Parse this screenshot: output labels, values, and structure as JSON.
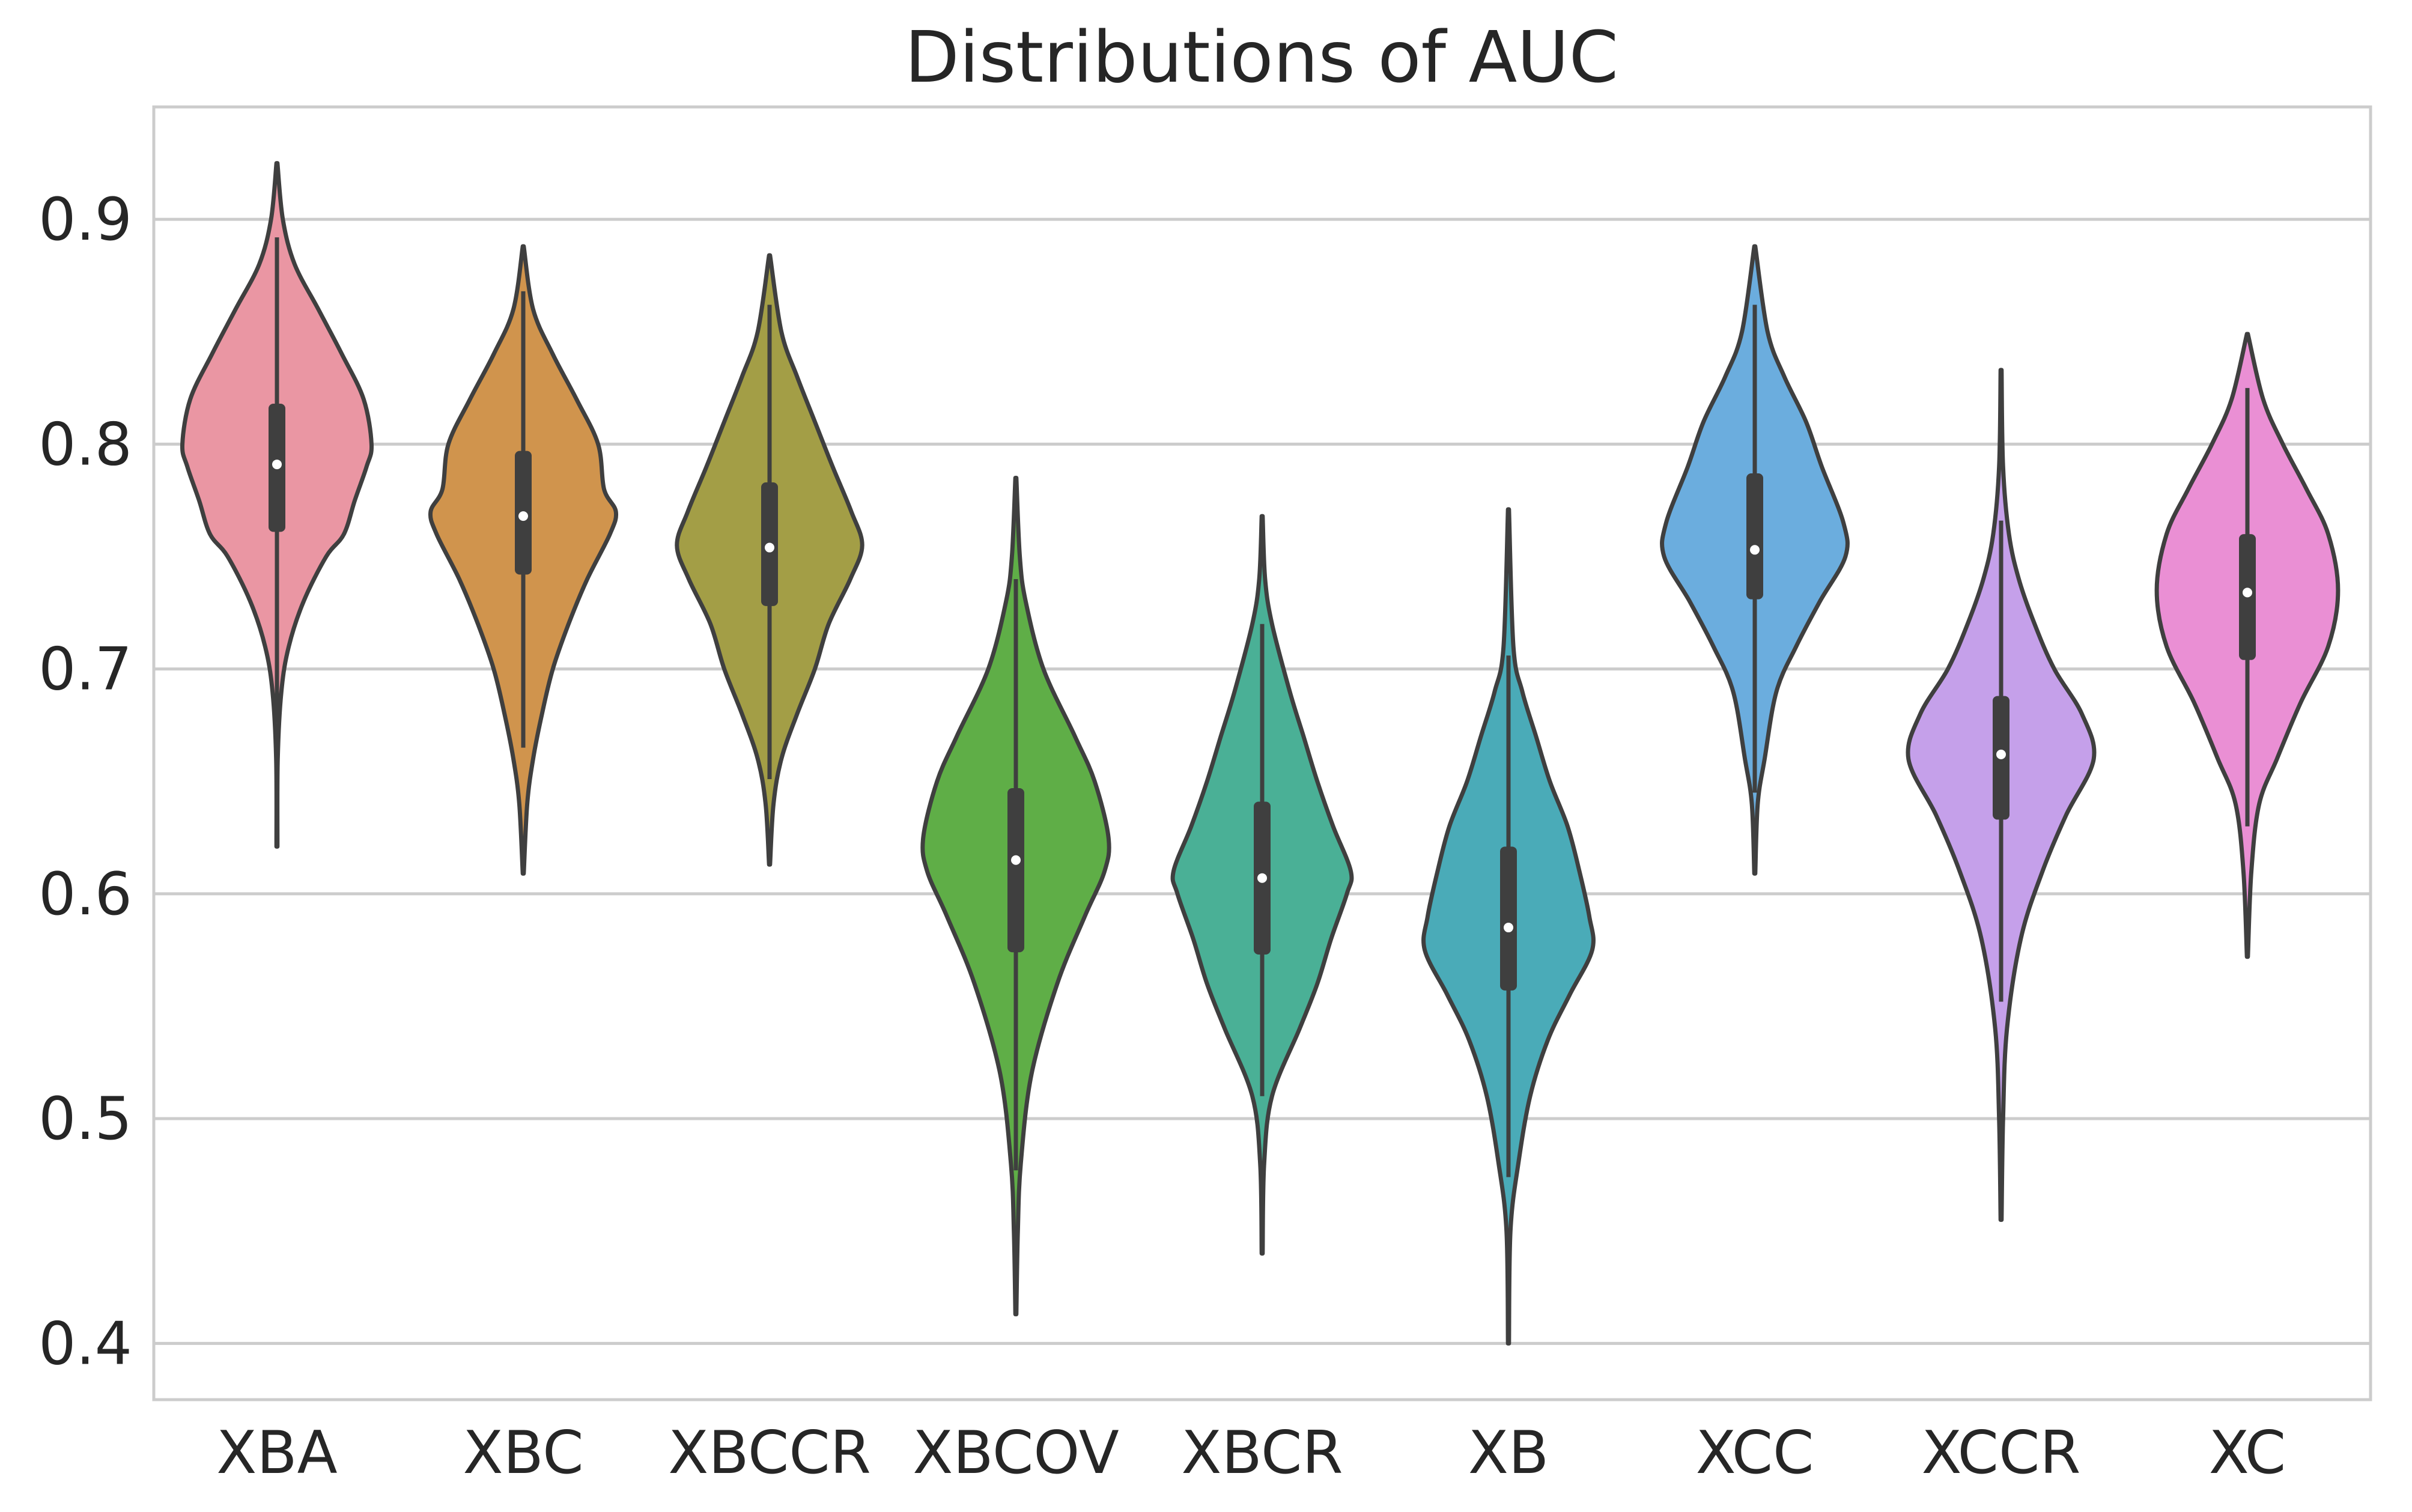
{
  "chart_data": {
    "type": "violin",
    "title": "Distributions of AUC",
    "xlabel": "",
    "ylabel": "",
    "ylim": [
      0.375,
      0.95
    ],
    "yticks": [
      0.4,
      0.5,
      0.6,
      0.7,
      0.8,
      0.9
    ],
    "ytick_labels": [
      "0.4",
      "0.5",
      "0.6",
      "0.7",
      "0.8",
      "0.9"
    ],
    "grid": "horizontal",
    "legend": "none",
    "categories": [
      "XBA",
      "XBC",
      "XBCCR",
      "XBCOV",
      "XBCR",
      "XB",
      "XCC",
      "XCCR",
      "XC"
    ],
    "series": [
      {
        "category": "XBA",
        "color": "#ea96a3",
        "min": 0.621,
        "max": 0.925,
        "whisker_low": 0.676,
        "whisker_high": 0.892,
        "q1": 0.761,
        "median": 0.791,
        "q3": 0.818,
        "density": [
          [
            0.621,
            0.005
          ],
          [
            0.66,
            0.008
          ],
          [
            0.69,
            0.045
          ],
          [
            0.71,
            0.12
          ],
          [
            0.73,
            0.27
          ],
          [
            0.75,
            0.5
          ],
          [
            0.76,
            0.68
          ],
          [
            0.775,
            0.79
          ],
          [
            0.79,
            0.91
          ],
          [
            0.8,
            0.96
          ],
          [
            0.82,
            0.88
          ],
          [
            0.84,
            0.66
          ],
          [
            0.86,
            0.42
          ],
          [
            0.88,
            0.18
          ],
          [
            0.9,
            0.06
          ],
          [
            0.925,
            0.005
          ]
        ]
      },
      {
        "category": "XBC",
        "color": "#d0944d",
        "min": 0.609,
        "max": 0.888,
        "whisker_low": 0.665,
        "whisker_high": 0.868,
        "q1": 0.742,
        "median": 0.768,
        "q3": 0.797,
        "density": [
          [
            0.609,
            0.005
          ],
          [
            0.64,
            0.04
          ],
          [
            0.66,
            0.1
          ],
          [
            0.68,
            0.19
          ],
          [
            0.7,
            0.3
          ],
          [
            0.72,
            0.46
          ],
          [
            0.74,
            0.65
          ],
          [
            0.76,
            0.88
          ],
          [
            0.77,
            0.94
          ],
          [
            0.78,
            0.82
          ],
          [
            0.8,
            0.76
          ],
          [
            0.82,
            0.54
          ],
          [
            0.84,
            0.3
          ],
          [
            0.86,
            0.1
          ],
          [
            0.888,
            0.005
          ]
        ]
      },
      {
        "category": "XBCCR",
        "color": "#a39e46",
        "min": 0.613,
        "max": 0.884,
        "whisker_low": 0.651,
        "whisker_high": 0.862,
        "q1": 0.728,
        "median": 0.754,
        "q3": 0.783,
        "density": [
          [
            0.613,
            0.005
          ],
          [
            0.64,
            0.04
          ],
          [
            0.66,
            0.12
          ],
          [
            0.68,
            0.28
          ],
          [
            0.7,
            0.46
          ],
          [
            0.72,
            0.6
          ],
          [
            0.74,
            0.82
          ],
          [
            0.755,
            0.94
          ],
          [
            0.77,
            0.83
          ],
          [
            0.79,
            0.64
          ],
          [
            0.81,
            0.46
          ],
          [
            0.83,
            0.28
          ],
          [
            0.85,
            0.12
          ],
          [
            0.884,
            0.005
          ]
        ]
      },
      {
        "category": "XBCOV",
        "color": "#5fae47",
        "min": 0.413,
        "max": 0.785,
        "whisker_low": 0.477,
        "whisker_high": 0.74,
        "q1": 0.574,
        "median": 0.615,
        "q3": 0.647,
        "density": [
          [
            0.413,
            0.005
          ],
          [
            0.45,
            0.02
          ],
          [
            0.48,
            0.05
          ],
          [
            0.52,
            0.16
          ],
          [
            0.56,
            0.42
          ],
          [
            0.59,
            0.7
          ],
          [
            0.61,
            0.9
          ],
          [
            0.625,
            0.94
          ],
          [
            0.65,
            0.8
          ],
          [
            0.67,
            0.6
          ],
          [
            0.7,
            0.28
          ],
          [
            0.73,
            0.1
          ],
          [
            0.75,
            0.04
          ],
          [
            0.785,
            0.005
          ]
        ]
      },
      {
        "category": "XBCR",
        "color": "#4ab096",
        "min": 0.44,
        "max": 0.768,
        "whisker_low": 0.51,
        "whisker_high": 0.72,
        "q1": 0.573,
        "median": 0.607,
        "q3": 0.641,
        "density": [
          [
            0.44,
            0.005
          ],
          [
            0.48,
            0.02
          ],
          [
            0.51,
            0.1
          ],
          [
            0.54,
            0.38
          ],
          [
            0.56,
            0.56
          ],
          [
            0.58,
            0.7
          ],
          [
            0.6,
            0.86
          ],
          [
            0.61,
            0.9
          ],
          [
            0.63,
            0.72
          ],
          [
            0.65,
            0.56
          ],
          [
            0.67,
            0.42
          ],
          [
            0.69,
            0.28
          ],
          [
            0.72,
            0.1
          ],
          [
            0.74,
            0.03
          ],
          [
            0.768,
            0.005
          ]
        ]
      },
      {
        "category": "XB",
        "color": "#4aabb8",
        "min": 0.4,
        "max": 0.771,
        "whisker_low": 0.474,
        "whisker_high": 0.706,
        "q1": 0.557,
        "median": 0.585,
        "q3": 0.621,
        "density": [
          [
            0.4,
            0.005
          ],
          [
            0.45,
            0.02
          ],
          [
            0.48,
            0.1
          ],
          [
            0.51,
            0.22
          ],
          [
            0.535,
            0.4
          ],
          [
            0.555,
            0.62
          ],
          [
            0.575,
            0.85
          ],
          [
            0.59,
            0.82
          ],
          [
            0.61,
            0.72
          ],
          [
            0.63,
            0.6
          ],
          [
            0.65,
            0.42
          ],
          [
            0.67,
            0.28
          ],
          [
            0.69,
            0.14
          ],
          [
            0.71,
            0.05
          ],
          [
            0.771,
            0.005
          ]
        ]
      },
      {
        "category": "XCC",
        "color": "#6badde",
        "min": 0.609,
        "max": 0.888,
        "whisker_low": 0.645,
        "whisker_high": 0.862,
        "q1": 0.731,
        "median": 0.753,
        "q3": 0.787,
        "density": [
          [
            0.609,
            0.005
          ],
          [
            0.64,
            0.03
          ],
          [
            0.66,
            0.1
          ],
          [
            0.69,
            0.22
          ],
          [
            0.71,
            0.42
          ],
          [
            0.73,
            0.66
          ],
          [
            0.75,
            0.92
          ],
          [
            0.765,
            0.9
          ],
          [
            0.79,
            0.68
          ],
          [
            0.81,
            0.52
          ],
          [
            0.83,
            0.3
          ],
          [
            0.85,
            0.13
          ],
          [
            0.888,
            0.005
          ]
        ]
      },
      {
        "category": "XCCR",
        "color": "#c5a0ea",
        "min": 0.455,
        "max": 0.833,
        "whisker_low": 0.552,
        "whisker_high": 0.766,
        "q1": 0.633,
        "median": 0.662,
        "q3": 0.688,
        "density": [
          [
            0.455,
            0.005
          ],
          [
            0.5,
            0.02
          ],
          [
            0.54,
            0.06
          ],
          [
            0.58,
            0.2
          ],
          [
            0.61,
            0.42
          ],
          [
            0.635,
            0.66
          ],
          [
            0.66,
            0.94
          ],
          [
            0.68,
            0.82
          ],
          [
            0.7,
            0.54
          ],
          [
            0.72,
            0.34
          ],
          [
            0.74,
            0.18
          ],
          [
            0.76,
            0.08
          ],
          [
            0.79,
            0.02
          ],
          [
            0.833,
            0.005
          ]
        ]
      },
      {
        "category": "XC",
        "color": "#ea8fd4",
        "min": 0.572,
        "max": 0.849,
        "whisker_low": 0.63,
        "whisker_high": 0.825,
        "q1": 0.704,
        "median": 0.734,
        "q3": 0.76,
        "density": [
          [
            0.572,
            0.005
          ],
          [
            0.61,
            0.04
          ],
          [
            0.64,
            0.12
          ],
          [
            0.66,
            0.3
          ],
          [
            0.685,
            0.54
          ],
          [
            0.71,
            0.82
          ],
          [
            0.735,
            0.92
          ],
          [
            0.76,
            0.82
          ],
          [
            0.78,
            0.6
          ],
          [
            0.8,
            0.36
          ],
          [
            0.82,
            0.16
          ],
          [
            0.849,
            0.005
          ]
        ]
      }
    ]
  }
}
